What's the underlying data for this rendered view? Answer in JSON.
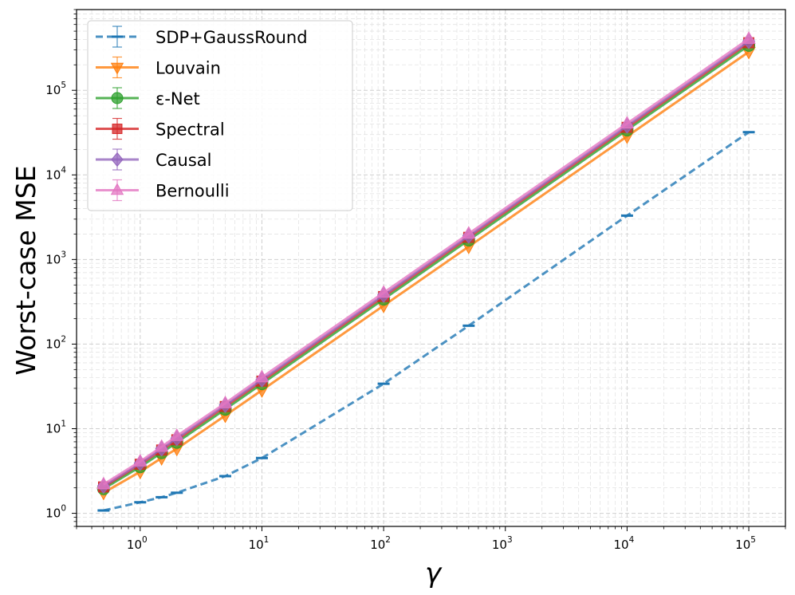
{
  "chart_data": {
    "type": "line",
    "title": "",
    "xlabel": "γ",
    "ylabel": "Worst-case MSE",
    "xscale": "log",
    "yscale": "log",
    "xlim": [
      0.3,
      200000
    ],
    "ylim": [
      0.7,
      900000
    ],
    "grid": true,
    "legend_position": "top-left",
    "x_ticks": [
      {
        "base": "10",
        "exp": "0",
        "value": 1
      },
      {
        "base": "10",
        "exp": "1",
        "value": 10
      },
      {
        "base": "10",
        "exp": "2",
        "value": 100
      },
      {
        "base": "10",
        "exp": "3",
        "value": 1000
      },
      {
        "base": "10",
        "exp": "4",
        "value": 10000
      },
      {
        "base": "10",
        "exp": "5",
        "value": 100000
      }
    ],
    "y_ticks": [
      {
        "base": "10",
        "exp": "0",
        "value": 1
      },
      {
        "base": "10",
        "exp": "1",
        "value": 10
      },
      {
        "base": "10",
        "exp": "2",
        "value": 100
      },
      {
        "base": "10",
        "exp": "3",
        "value": 1000
      },
      {
        "base": "10",
        "exp": "4",
        "value": 10000
      },
      {
        "base": "10",
        "exp": "5",
        "value": 100000
      }
    ],
    "x": [
      0.5,
      1,
      1.5,
      2,
      5,
      10,
      100,
      500,
      10000,
      100000
    ],
    "series": [
      {
        "name": "SDP+GaussRound",
        "color": "#1f77b4",
        "marker": "hline",
        "dashed": true,
        "values": [
          1.08,
          1.35,
          1.55,
          1.75,
          2.75,
          4.5,
          34,
          165,
          3300,
          32000
        ]
      },
      {
        "name": "Louvain",
        "color": "#ff7f0e",
        "marker": "triangle-down",
        "dashed": false,
        "values": [
          1.75,
          3.1,
          4.5,
          5.8,
          14.3,
          28.5,
          285,
          1420,
          28500,
          285000
        ]
      },
      {
        "name": "ε-Net",
        "color": "#2ca02c",
        "marker": "circle",
        "dashed": false,
        "values": [
          1.95,
          3.55,
          5.2,
          6.9,
          17,
          34,
          340,
          1700,
          34000,
          340000
        ]
      },
      {
        "name": "Spectral",
        "color": "#d62728",
        "marker": "square",
        "dashed": false,
        "values": [
          2.05,
          3.8,
          5.6,
          7.4,
          18.3,
          36.5,
          365,
          1830,
          36500,
          365000
        ]
      },
      {
        "name": "Causal",
        "color": "#9467bd",
        "marker": "diamond",
        "dashed": false,
        "values": [
          2.1,
          3.9,
          5.8,
          7.7,
          19,
          38,
          380,
          1900,
          38000,
          380000
        ]
      },
      {
        "name": "Bernoulli",
        "color": "#e377c2",
        "marker": "triangle-up",
        "dashed": false,
        "values": [
          2.2,
          4.1,
          6.1,
          8.2,
          20,
          40.5,
          405,
          2020,
          40500,
          405000
        ]
      }
    ]
  }
}
